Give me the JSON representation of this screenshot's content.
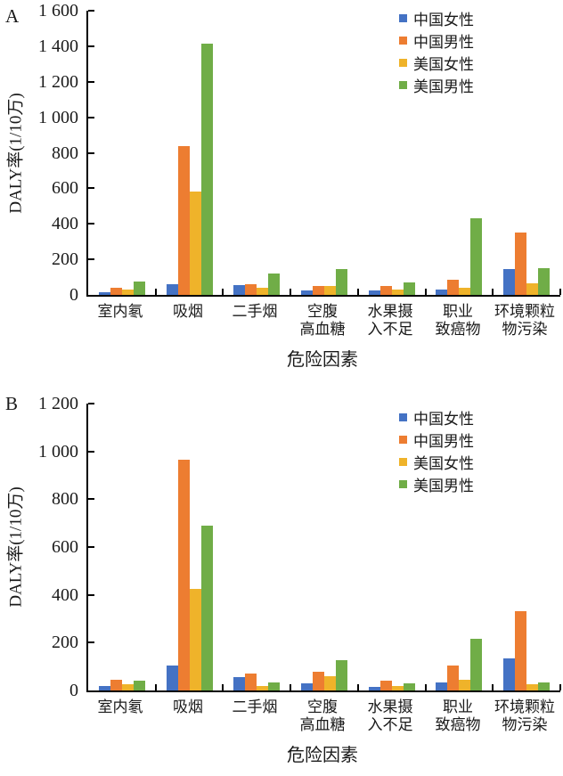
{
  "figure": {
    "background": "#ffffff",
    "axis_color": "#000000",
    "text_color": "#1a1a1a"
  },
  "chart_data": [
    {
      "type": "bar",
      "panel_label": "A",
      "ylabel": "DALY率(1/10万)",
      "xlabel": "危险因素",
      "ylim": [
        0,
        1600
      ],
      "ytick_step": 200,
      "ytick_labels": [
        "0",
        "200",
        "400",
        "600",
        "800",
        "1 000",
        "1 200",
        "1 400",
        "1 600"
      ],
      "grid": false,
      "legend_position": "top-right",
      "categories": [
        "室内氡",
        "吸烟",
        "二手烟",
        "空腹\n高血糖",
        "水果摄\n入不足",
        "职业\n致癌物",
        "环境颗粒\n物污染"
      ],
      "series": [
        {
          "name": "中国女性",
          "color": "#4472C4",
          "values": [
            15,
            60,
            55,
            25,
            25,
            30,
            145
          ]
        },
        {
          "name": "中国男性",
          "color": "#ED7D31",
          "values": [
            38,
            840,
            62,
            52,
            48,
            85,
            350
          ]
        },
        {
          "name": "美国女性",
          "color": "#EFB32A",
          "values": [
            30,
            580,
            40,
            50,
            30,
            40,
            65
          ]
        },
        {
          "name": "美国男性",
          "color": "#70AD47",
          "values": [
            75,
            1415,
            122,
            145,
            68,
            430,
            152
          ]
        }
      ]
    },
    {
      "type": "bar",
      "panel_label": "B",
      "ylabel": "DALY率(1/10万)",
      "xlabel": "危险因素",
      "ylim": [
        0,
        1200
      ],
      "ytick_step": 200,
      "ytick_labels": [
        "0",
        "200",
        "400",
        "600",
        "800",
        "1 000",
        "1 200"
      ],
      "grid": false,
      "legend_position": "top-right",
      "categories": [
        "室内氡",
        "吸烟",
        "二手烟",
        "空腹\n高血糖",
        "水果摄\n入不足",
        "职业\n致癌物",
        "环境颗粒\n物污染"
      ],
      "series": [
        {
          "name": "中国女性",
          "color": "#4472C4",
          "values": [
            20,
            105,
            57,
            30,
            15,
            35,
            135
          ]
        },
        {
          "name": "中国男性",
          "color": "#ED7D31",
          "values": [
            45,
            965,
            70,
            80,
            40,
            105,
            330
          ]
        },
        {
          "name": "美国女性",
          "color": "#EFB32A",
          "values": [
            25,
            425,
            20,
            60,
            20,
            45,
            25
          ]
        },
        {
          "name": "美国男性",
          "color": "#70AD47",
          "values": [
            40,
            690,
            35,
            125,
            30,
            215,
            35
          ]
        }
      ]
    }
  ]
}
